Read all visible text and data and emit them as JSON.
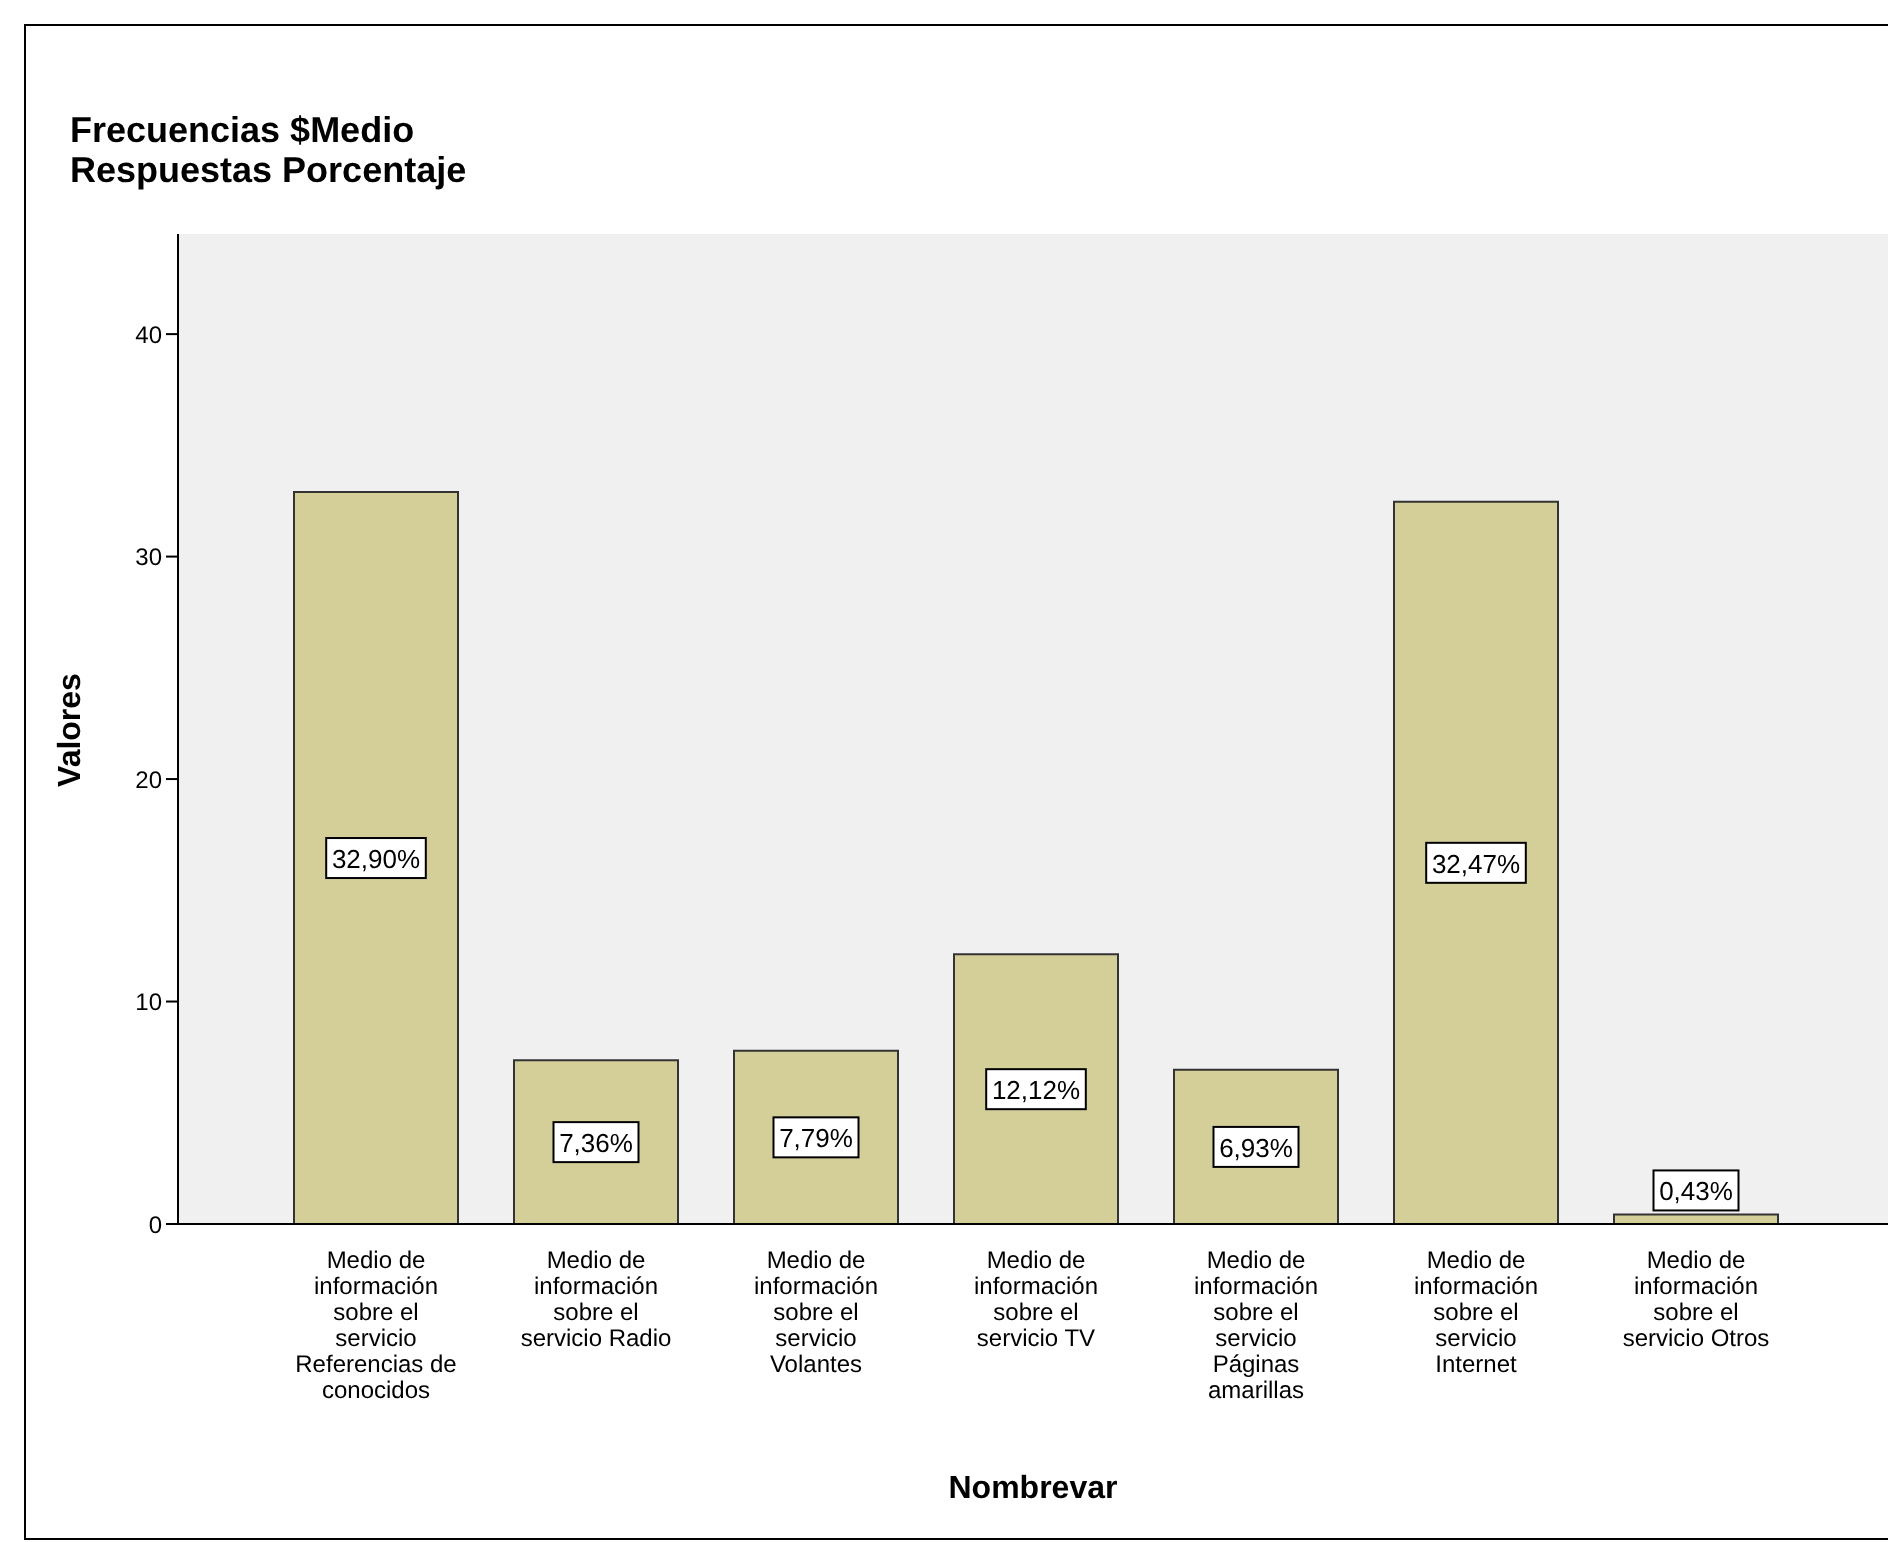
{
  "chart_data": {
    "type": "bar",
    "title": "Frecuencias $Medio\nRespuestas Porcentaje",
    "xlabel": "Nombrevar",
    "ylabel": "Valores",
    "categories": [
      "Medio de información sobre el servicio Referencias de conocidos",
      "Medio de información sobre el servicio Radio",
      "Medio de información sobre el servicio Volantes",
      "Medio de información sobre el servicio TV",
      "Medio de información sobre el servicio Páginas amarillas",
      "Medio de información sobre el servicio Internet",
      "Medio de información sobre el servicio Otros"
    ],
    "values": [
      32.9,
      7.36,
      7.79,
      12.12,
      6.93,
      32.47,
      0.43
    ],
    "value_labels": [
      "32,90%",
      "7,36%",
      "7,79%",
      "12,12%",
      "6,93%",
      "32,47%",
      "0,43%"
    ],
    "color": "#d4cf98",
    "ylim": [
      0,
      44.5
    ],
    "yticks": [
      0,
      10,
      20,
      30,
      40
    ],
    "grid": false
  }
}
